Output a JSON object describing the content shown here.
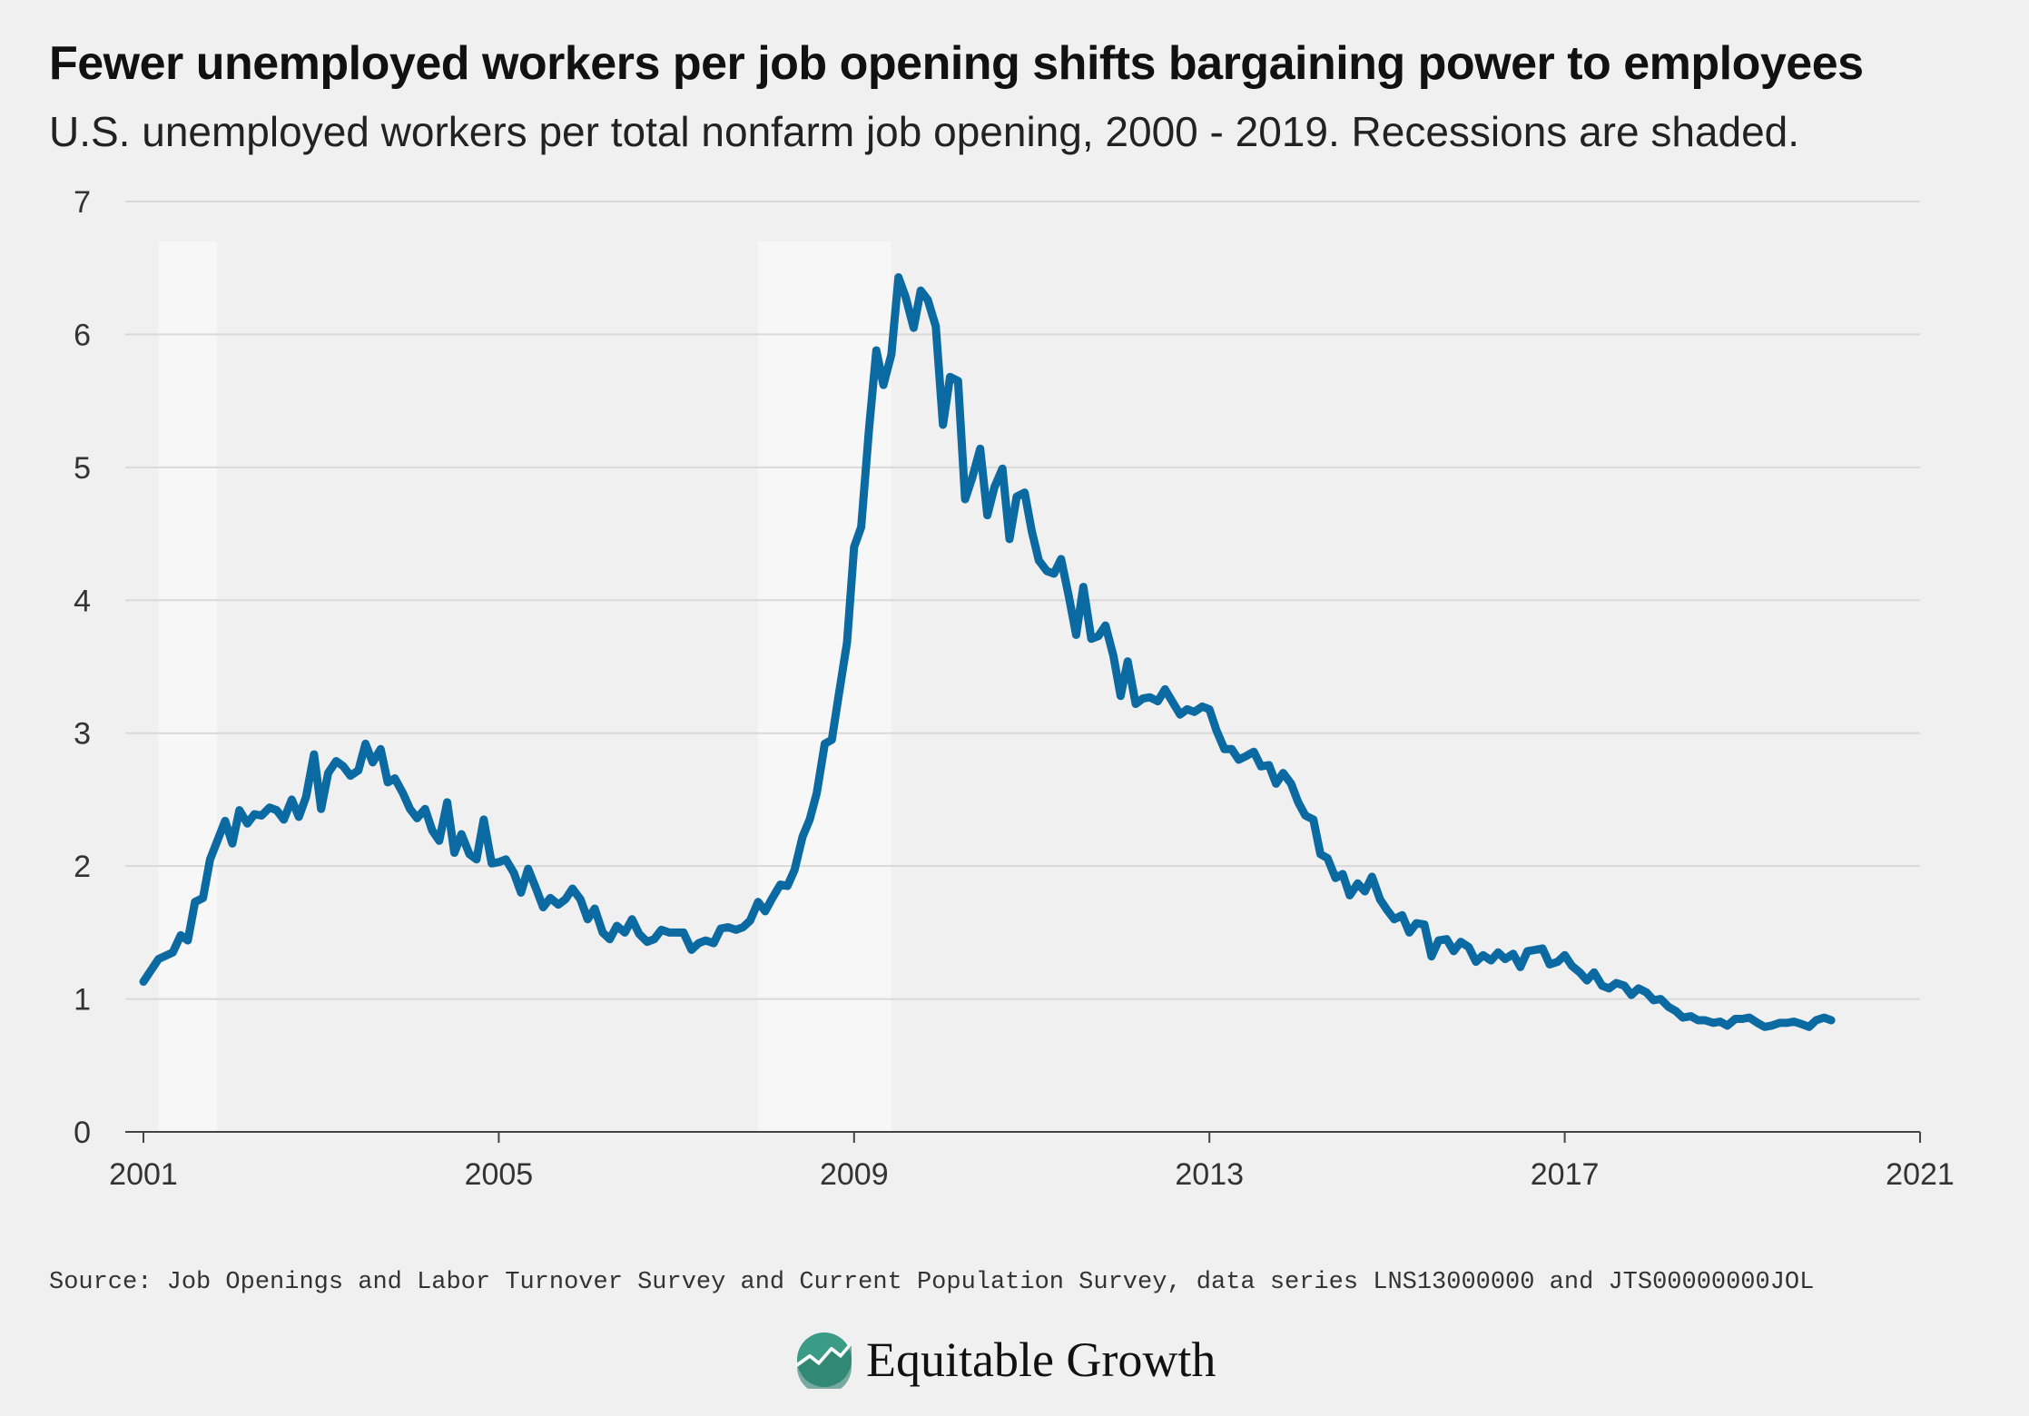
{
  "header": {
    "title": "Fewer unemployed workers per job opening shifts bargaining power to employees",
    "subtitle": "U.S. unemployed workers per total nonfarm job opening, 2000 - 2019. Recessions are shaded."
  },
  "footer": {
    "source": "Source: Job Openings and Labor Turnover Survey and Current Population Survey, data series LNS13000000 and JTS00000000JOL",
    "brand": "Equitable Growth"
  },
  "colors": {
    "line": "#0a6aa1",
    "recession": "#f7f7f7",
    "grid": "#d9d9d9",
    "background": "#f0f0f0",
    "logo": "#3a9c86"
  },
  "chart_data": {
    "type": "line",
    "title": "Fewer unemployed workers per job opening shifts bargaining power to employees",
    "subtitle": "U.S. unemployed workers per total nonfarm job opening, 2000 - 2019. Recessions are shaded.",
    "xlabel": "",
    "ylabel": "",
    "xlim": [
      2001,
      2021
    ],
    "ylim": [
      0,
      7
    ],
    "x_ticks": [
      2001,
      2005,
      2009,
      2013,
      2017,
      2021
    ],
    "y_ticks": [
      0,
      1,
      2,
      3,
      4,
      5,
      6,
      7
    ],
    "grid": "horizontal",
    "recessions": [
      [
        2001.17,
        2001.83
      ],
      [
        2007.92,
        2009.42
      ]
    ],
    "series": [
      {
        "points": [
          [
            2001.0,
            1.13
          ],
          [
            2001.17,
            1.3
          ],
          [
            2001.33,
            1.35
          ],
          [
            2001.42,
            1.48
          ],
          [
            2001.5,
            1.44
          ],
          [
            2001.58,
            1.73
          ],
          [
            2001.67,
            1.76
          ],
          [
            2001.75,
            2.05
          ],
          [
            2001.92,
            2.34
          ],
          [
            2002.0,
            2.17
          ],
          [
            2002.08,
            2.42
          ],
          [
            2002.17,
            2.32
          ],
          [
            2002.25,
            2.39
          ],
          [
            2002.33,
            2.38
          ],
          [
            2002.42,
            2.44
          ],
          [
            2002.5,
            2.42
          ],
          [
            2002.58,
            2.35
          ],
          [
            2002.67,
            2.5
          ],
          [
            2002.75,
            2.37
          ],
          [
            2002.83,
            2.52
          ],
          [
            2002.92,
            2.84
          ],
          [
            2003.0,
            2.43
          ],
          [
            2003.08,
            2.7
          ],
          [
            2003.17,
            2.79
          ],
          [
            2003.25,
            2.75
          ],
          [
            2003.33,
            2.68
          ],
          [
            2003.42,
            2.72
          ],
          [
            2003.5,
            2.92
          ],
          [
            2003.58,
            2.78
          ],
          [
            2003.67,
            2.88
          ],
          [
            2003.75,
            2.63
          ],
          [
            2003.83,
            2.66
          ],
          [
            2003.92,
            2.55
          ],
          [
            2004.0,
            2.43
          ],
          [
            2004.08,
            2.36
          ],
          [
            2004.17,
            2.43
          ],
          [
            2004.25,
            2.27
          ],
          [
            2004.33,
            2.19
          ],
          [
            2004.42,
            2.48
          ],
          [
            2004.5,
            2.1
          ],
          [
            2004.58,
            2.24
          ],
          [
            2004.67,
            2.09
          ],
          [
            2004.75,
            2.05
          ],
          [
            2004.83,
            2.35
          ],
          [
            2004.92,
            2.02
          ],
          [
            2005.0,
            2.03
          ],
          [
            2005.08,
            2.05
          ],
          [
            2005.17,
            1.95
          ],
          [
            2005.25,
            1.8
          ],
          [
            2005.33,
            1.98
          ],
          [
            2005.42,
            1.83
          ],
          [
            2005.5,
            1.69
          ],
          [
            2005.58,
            1.76
          ],
          [
            2005.67,
            1.71
          ],
          [
            2005.75,
            1.75
          ],
          [
            2005.83,
            1.83
          ],
          [
            2005.92,
            1.75
          ],
          [
            2006.0,
            1.6
          ],
          [
            2006.08,
            1.68
          ],
          [
            2006.17,
            1.5
          ],
          [
            2006.25,
            1.45
          ],
          [
            2006.33,
            1.55
          ],
          [
            2006.42,
            1.5
          ],
          [
            2006.5,
            1.6
          ],
          [
            2006.58,
            1.49
          ],
          [
            2006.67,
            1.43
          ],
          [
            2006.75,
            1.45
          ],
          [
            2006.83,
            1.52
          ],
          [
            2006.92,
            1.5
          ],
          [
            2007.0,
            1.5
          ],
          [
            2007.08,
            1.5
          ],
          [
            2007.17,
            1.37
          ],
          [
            2007.25,
            1.42
          ],
          [
            2007.33,
            1.44
          ],
          [
            2007.42,
            1.42
          ],
          [
            2007.5,
            1.53
          ],
          [
            2007.58,
            1.54
          ],
          [
            2007.67,
            1.52
          ],
          [
            2007.75,
            1.54
          ],
          [
            2007.83,
            1.59
          ],
          [
            2007.92,
            1.73
          ],
          [
            2008.0,
            1.66
          ],
          [
            2008.08,
            1.76
          ],
          [
            2008.17,
            1.86
          ],
          [
            2008.25,
            1.85
          ],
          [
            2008.33,
            1.97
          ],
          [
            2008.42,
            2.22
          ],
          [
            2008.5,
            2.35
          ],
          [
            2008.58,
            2.55
          ],
          [
            2008.67,
            2.92
          ],
          [
            2008.75,
            2.95
          ],
          [
            2008.83,
            3.3
          ],
          [
            2008.92,
            3.68
          ],
          [
            2009.0,
            4.4
          ],
          [
            2009.08,
            4.55
          ],
          [
            2009.17,
            5.3
          ],
          [
            2009.25,
            5.88
          ],
          [
            2009.33,
            5.62
          ],
          [
            2009.42,
            5.85
          ],
          [
            2009.5,
            6.43
          ],
          [
            2009.58,
            6.28
          ],
          [
            2009.67,
            6.05
          ],
          [
            2009.75,
            6.33
          ],
          [
            2009.83,
            6.26
          ],
          [
            2009.92,
            6.06
          ],
          [
            2010.0,
            5.32
          ],
          [
            2010.08,
            5.68
          ],
          [
            2010.17,
            5.65
          ],
          [
            2010.25,
            4.76
          ],
          [
            2010.33,
            4.92
          ],
          [
            2010.42,
            5.14
          ],
          [
            2010.5,
            4.64
          ],
          [
            2010.58,
            4.85
          ],
          [
            2010.67,
            4.99
          ],
          [
            2010.75,
            4.46
          ],
          [
            2010.83,
            4.78
          ],
          [
            2010.92,
            4.81
          ],
          [
            2011.0,
            4.52
          ],
          [
            2011.08,
            4.3
          ],
          [
            2011.17,
            4.22
          ],
          [
            2011.25,
            4.2
          ],
          [
            2011.33,
            4.31
          ],
          [
            2011.42,
            4.02
          ],
          [
            2011.5,
            3.74
          ],
          [
            2011.58,
            4.1
          ],
          [
            2011.67,
            3.71
          ],
          [
            2011.75,
            3.73
          ],
          [
            2011.83,
            3.81
          ],
          [
            2011.92,
            3.58
          ],
          [
            2012.0,
            3.28
          ],
          [
            2012.08,
            3.54
          ],
          [
            2012.17,
            3.22
          ],
          [
            2012.25,
            3.26
          ],
          [
            2012.33,
            3.27
          ],
          [
            2012.42,
            3.24
          ],
          [
            2012.5,
            3.33
          ],
          [
            2012.58,
            3.24
          ],
          [
            2012.67,
            3.14
          ],
          [
            2012.75,
            3.18
          ],
          [
            2012.83,
            3.16
          ],
          [
            2012.92,
            3.2
          ],
          [
            2013.0,
            3.18
          ],
          [
            2013.08,
            3.02
          ],
          [
            2013.17,
            2.88
          ],
          [
            2013.25,
            2.88
          ],
          [
            2013.33,
            2.8
          ],
          [
            2013.42,
            2.83
          ],
          [
            2013.5,
            2.86
          ],
          [
            2013.58,
            2.75
          ],
          [
            2013.67,
            2.76
          ],
          [
            2013.75,
            2.62
          ],
          [
            2013.83,
            2.7
          ],
          [
            2013.92,
            2.62
          ],
          [
            2014.0,
            2.48
          ],
          [
            2014.08,
            2.38
          ],
          [
            2014.17,
            2.35
          ],
          [
            2014.25,
            2.09
          ],
          [
            2014.33,
            2.06
          ],
          [
            2014.42,
            1.91
          ],
          [
            2014.5,
            1.94
          ],
          [
            2014.58,
            1.78
          ],
          [
            2014.67,
            1.87
          ],
          [
            2014.75,
            1.81
          ],
          [
            2014.83,
            1.92
          ],
          [
            2014.92,
            1.75
          ],
          [
            2015.0,
            1.67
          ],
          [
            2015.08,
            1.6
          ],
          [
            2015.17,
            1.63
          ],
          [
            2015.25,
            1.5
          ],
          [
            2015.33,
            1.57
          ],
          [
            2015.42,
            1.56
          ],
          [
            2015.5,
            1.32
          ],
          [
            2015.58,
            1.44
          ],
          [
            2015.67,
            1.45
          ],
          [
            2015.75,
            1.36
          ],
          [
            2015.83,
            1.43
          ],
          [
            2015.92,
            1.39
          ],
          [
            2016.0,
            1.28
          ],
          [
            2016.08,
            1.33
          ],
          [
            2016.17,
            1.29
          ],
          [
            2016.25,
            1.35
          ],
          [
            2016.33,
            1.3
          ],
          [
            2016.42,
            1.34
          ],
          [
            2016.5,
            1.24
          ],
          [
            2016.58,
            1.36
          ],
          [
            2016.67,
            1.37
          ],
          [
            2016.75,
            1.38
          ],
          [
            2016.83,
            1.26
          ],
          [
            2016.92,
            1.28
          ],
          [
            2017.0,
            1.33
          ],
          [
            2017.08,
            1.25
          ],
          [
            2017.17,
            1.2
          ],
          [
            2017.25,
            1.14
          ],
          [
            2017.33,
            1.2
          ],
          [
            2017.42,
            1.1
          ],
          [
            2017.5,
            1.08
          ],
          [
            2017.58,
            1.12
          ],
          [
            2017.67,
            1.1
          ],
          [
            2017.75,
            1.03
          ],
          [
            2017.83,
            1.08
          ],
          [
            2017.92,
            1.05
          ],
          [
            2018.0,
            0.99
          ],
          [
            2018.08,
            1.0
          ],
          [
            2018.17,
            0.94
          ],
          [
            2018.25,
            0.91
          ],
          [
            2018.33,
            0.86
          ],
          [
            2018.42,
            0.87
          ],
          [
            2018.5,
            0.84
          ],
          [
            2018.58,
            0.84
          ],
          [
            2018.67,
            0.82
          ],
          [
            2018.75,
            0.83
          ],
          [
            2018.83,
            0.8
          ],
          [
            2018.92,
            0.85
          ],
          [
            2019.0,
            0.85
          ],
          [
            2019.08,
            0.86
          ],
          [
            2019.17,
            0.82
          ],
          [
            2019.25,
            0.79
          ],
          [
            2019.33,
            0.8
          ],
          [
            2019.42,
            0.82
          ],
          [
            2019.5,
            0.82
          ],
          [
            2019.58,
            0.83
          ],
          [
            2019.67,
            0.81
          ],
          [
            2019.75,
            0.79
          ],
          [
            2019.83,
            0.84
          ],
          [
            2019.92,
            0.86
          ],
          [
            2020.0,
            0.84
          ]
        ]
      }
    ]
  }
}
